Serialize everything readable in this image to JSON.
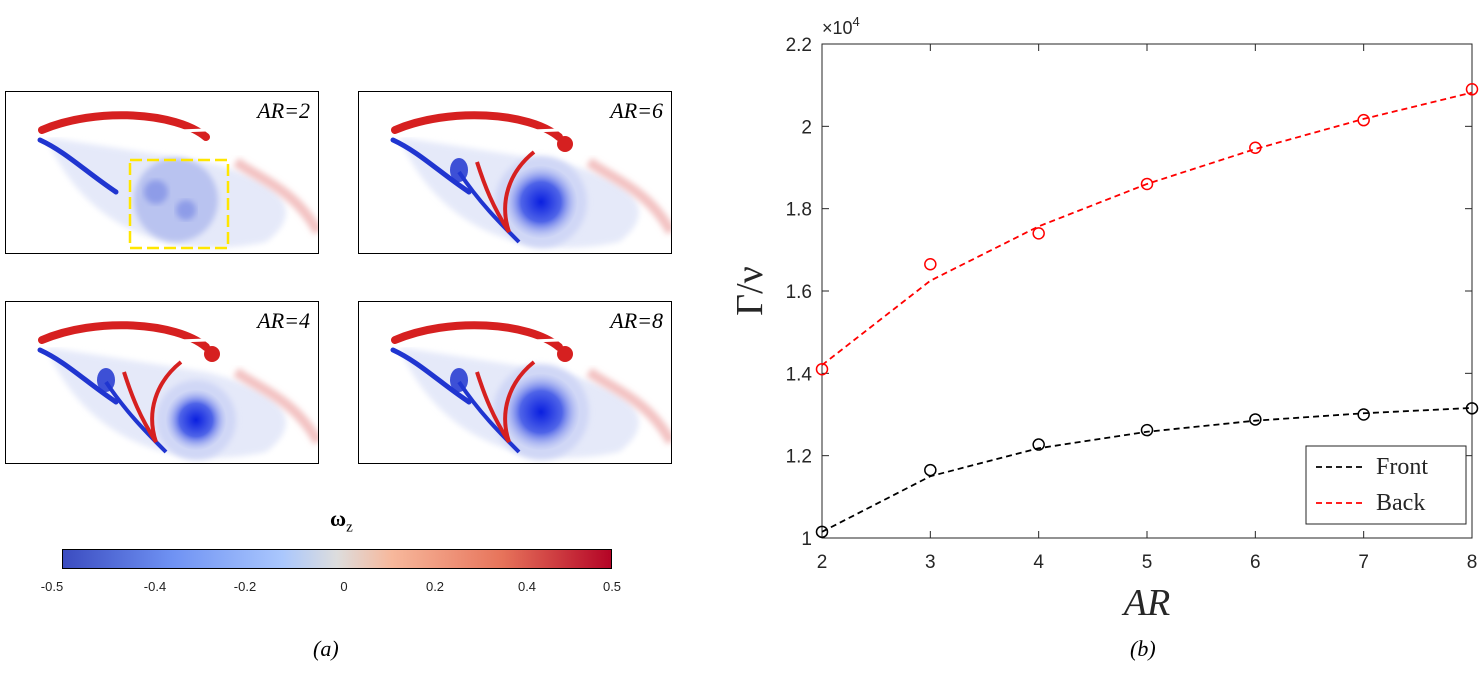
{
  "panel_a": {
    "caption": "(a)",
    "snapshots": [
      {
        "label": "AR=2"
      },
      {
        "label": "AR=6"
      },
      {
        "label": "AR=4"
      },
      {
        "label": "AR=8"
      }
    ],
    "colorbar": {
      "variable": "ω",
      "subscript": "z",
      "ticks": [
        "-0.5",
        "-0.4",
        "-0.2",
        "0",
        "0.2",
        "0.4",
        "0.5"
      ]
    }
  },
  "panel_b": {
    "caption": "(b)"
  },
  "colors": {
    "front": "#000000",
    "back": "#ff0000",
    "positive": "#d62020",
    "negative": "#2035d0",
    "highlight": "#ffe600"
  },
  "chart_data": {
    "type": "scatter",
    "xlabel": "AR",
    "ylabel": "Γ/ν",
    "exponent_label": "×10",
    "exponent_power": "4",
    "xlim": [
      2,
      8
    ],
    "ylim": [
      1.0,
      2.2
    ],
    "x_ticks": [
      2,
      3,
      4,
      5,
      6,
      7,
      8
    ],
    "y_ticks": [
      1,
      1.2,
      1.4,
      1.6,
      1.8,
      2,
      2.2
    ],
    "y_tick_labels": [
      "1",
      "1.2",
      "1.4",
      "1.6",
      "1.8",
      "2",
      "2.2"
    ],
    "legend_position": "bottom-right",
    "series": [
      {
        "name": "Front",
        "x": [
          2,
          3,
          4,
          5,
          6,
          7,
          8
        ],
        "y": [
          1.015,
          1.165,
          1.227,
          1.262,
          1.288,
          1.3,
          1.315
        ],
        "fit_y": [
          1.015,
          1.15,
          1.218,
          1.258,
          1.285,
          1.303,
          1.316
        ]
      },
      {
        "name": "Back",
        "x": [
          2,
          3,
          4,
          5,
          6,
          7,
          8
        ],
        "y": [
          1.41,
          1.665,
          1.74,
          1.86,
          1.948,
          2.015,
          2.09
        ],
        "fit_y": [
          1.42,
          1.625,
          1.757,
          1.86,
          1.945,
          2.018,
          2.082
        ]
      }
    ]
  }
}
